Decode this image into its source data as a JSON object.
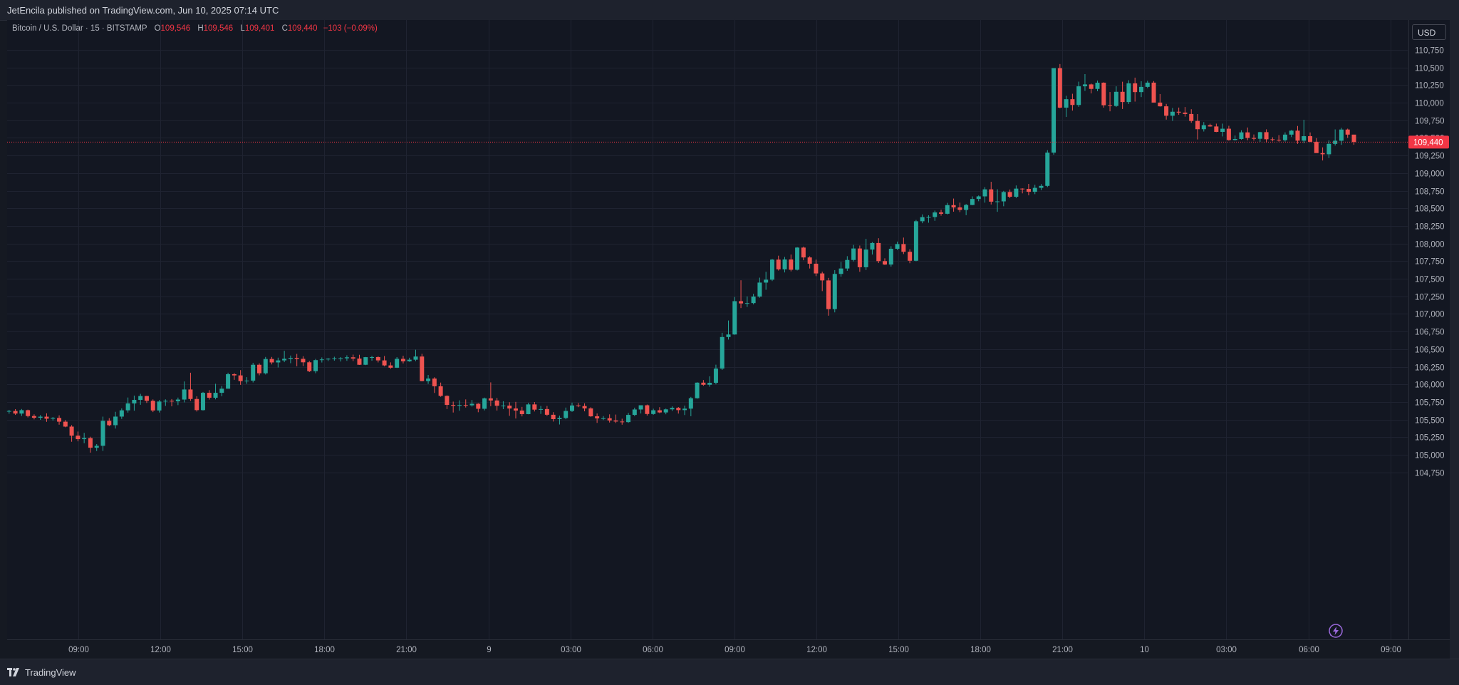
{
  "header": {
    "published_text": "JetEncila published on TradingView.com, Jun 10, 2025 07:14 UTC"
  },
  "legend": {
    "symbol": "Bitcoin / U.S. Dollar · 15 · BITSTAMP",
    "open_label": "O",
    "open": "109,546",
    "high_label": "H",
    "high": "109,546",
    "low_label": "L",
    "low": "109,401",
    "close_label": "C",
    "close": "109,440",
    "change": "−103 (−0.09%)"
  },
  "currency_button": "USD",
  "last_price_label": "109,440",
  "footer": {
    "brand": "TradingView"
  },
  "colors": {
    "up": "#26a69a",
    "down": "#ef5350",
    "background": "#131722",
    "grid": "#1f2331",
    "text": "#b2b5be",
    "last_price": "#f23645"
  },
  "icons": {
    "logo": "tradingview-logo-icon",
    "bolt": "lightning-bolt-icon"
  },
  "chart_data": {
    "type": "candlestick",
    "title": "Bitcoin / U.S. Dollar · 15 · BITSTAMP",
    "interval": "15",
    "exchange": "BITSTAMP",
    "currency": "USD",
    "ylim": [
      104500,
      111000
    ],
    "yticks": [
      104750,
      105000,
      105250,
      105500,
      105750,
      106000,
      106250,
      106500,
      106750,
      107000,
      107250,
      107500,
      107750,
      108000,
      108250,
      108500,
      108750,
      109000,
      109250,
      109500,
      109750,
      110000,
      110250,
      110500,
      110750
    ],
    "ytick_labels": [
      "104,750",
      "105,000",
      "105,250",
      "105,500",
      "105,750",
      "106,000",
      "106,250",
      "106,500",
      "106,750",
      "107,000",
      "107,250",
      "107,500",
      "107,750",
      "108,000",
      "108,250",
      "108,500",
      "108,750",
      "109,000",
      "109,250",
      "109,500",
      "109,750",
      "110,000",
      "110,250",
      "110,500",
      "110,750"
    ],
    "xticks": [
      "09:00",
      "12:00",
      "15:00",
      "18:00",
      "21:00",
      "9",
      "03:00",
      "06:00",
      "09:00",
      "12:00",
      "15:00",
      "18:00",
      "21:00",
      "10",
      "03:00",
      "06:00",
      "09:00"
    ],
    "last_price": 109440,
    "grid": true,
    "candles": [
      [
        105614,
        105638,
        105583,
        105622
      ],
      [
        105622,
        105648,
        105566,
        105585
      ],
      [
        105585,
        105650,
        105551,
        105633
      ],
      [
        105633,
        105641,
        105531,
        105550
      ],
      [
        105550,
        105574,
        105503,
        105526
      ],
      [
        105526,
        105564,
        105496,
        105541
      ],
      [
        105541,
        105588,
        105468,
        105512
      ],
      [
        105512,
        105536,
        105486,
        105523
      ],
      [
        105523,
        105560,
        105427,
        105470
      ],
      [
        105470,
        105493,
        105391,
        105400
      ],
      [
        105400,
        105421,
        105185,
        105271
      ],
      [
        105271,
        105330,
        105191,
        105222
      ],
      [
        105222,
        105311,
        105164,
        105237
      ],
      [
        105237,
        105256,
        105030,
        105100
      ],
      [
        105100,
        105152,
        105053,
        105127
      ],
      [
        105127,
        105541,
        105054,
        105482
      ],
      [
        105482,
        105520,
        105406,
        105420
      ],
      [
        105420,
        105610,
        105372,
        105542
      ],
      [
        105542,
        105658,
        105509,
        105631
      ],
      [
        105631,
        105813,
        105599,
        105729
      ],
      [
        105729,
        105840,
        105626,
        105779
      ],
      [
        105779,
        105865,
        105710,
        105834
      ],
      [
        105834,
        105837,
        105736,
        105766
      ],
      [
        105766,
        105786,
        105606,
        105629
      ],
      [
        105629,
        105778,
        105600,
        105756
      ],
      [
        105756,
        105787,
        105694,
        105766
      ],
      [
        105766,
        105791,
        105688,
        105759
      ],
      [
        105759,
        105812,
        105705,
        105784
      ],
      [
        105784,
        106041,
        105744,
        105927
      ],
      [
        105927,
        106165,
        105766,
        105792
      ],
      [
        105792,
        105831,
        105614,
        105634
      ],
      [
        105634,
        105892,
        105628,
        105880
      ],
      [
        105880,
        105918,
        105784,
        105810
      ],
      [
        105810,
        106008,
        105787,
        105880
      ],
      [
        105880,
        105977,
        105831,
        105938
      ],
      [
        105938,
        106165,
        105939,
        106144
      ],
      [
        106144,
        106160,
        106064,
        106127
      ],
      [
        106127,
        106202,
        105993,
        106046
      ],
      [
        106046,
        106102,
        106008,
        106053
      ],
      [
        106053,
        106306,
        106027,
        106278
      ],
      [
        106278,
        106298,
        106129,
        106157
      ],
      [
        106157,
        106389,
        106140,
        106360
      ],
      [
        106360,
        106389,
        106283,
        106311
      ],
      [
        106311,
        106379,
        106240,
        106340
      ],
      [
        106340,
        106476,
        106315,
        106363
      ],
      [
        106363,
        106409,
        106300,
        106376
      ],
      [
        106376,
        106432,
        106257,
        106362
      ],
      [
        106362,
        106399,
        106260,
        106313
      ],
      [
        106313,
        106331,
        106174,
        106187
      ],
      [
        106187,
        106361,
        106158,
        106344
      ],
      [
        106344,
        106382,
        106310,
        106354
      ],
      [
        106354,
        106372,
        106331,
        106364
      ],
      [
        106364,
        106392,
        106337,
        106369
      ],
      [
        106369,
        106387,
        106324,
        106370
      ],
      [
        106370,
        106412,
        106334,
        106384
      ],
      [
        106384,
        106422,
        106331,
        106366
      ],
      [
        106366,
        106420,
        106276,
        106278
      ],
      [
        106278,
        106389,
        106273,
        106386
      ],
      [
        106386,
        106404,
        106335,
        106387
      ],
      [
        106387,
        106398,
        106311,
        106340
      ],
      [
        106340,
        106402,
        106256,
        106269
      ],
      [
        106269,
        106312,
        106221,
        106236
      ],
      [
        106236,
        106387,
        106232,
        106362
      ],
      [
        106362,
        106406,
        106297,
        106327
      ],
      [
        106327,
        106378,
        106320,
        106350
      ],
      [
        106350,
        106492,
        106330,
        106395
      ],
      [
        106395,
        106433,
        106043,
        106046
      ],
      [
        106046,
        106133,
        106006,
        106082
      ],
      [
        106082,
        106101,
        105878,
        105973
      ],
      [
        105973,
        106025,
        105823,
        105836
      ],
      [
        105836,
        105844,
        105649,
        105708
      ],
      [
        105708,
        105755,
        105600,
        105696
      ],
      [
        105696,
        105773,
        105625,
        105707
      ],
      [
        105707,
        105786,
        105671,
        105702
      ],
      [
        105702,
        105778,
        105684,
        105724
      ],
      [
        105724,
        105732,
        105604,
        105653
      ],
      [
        105653,
        105812,
        105630,
        105801
      ],
      [
        105801,
        106028,
        105689,
        105771
      ],
      [
        105771,
        105807,
        105628,
        105696
      ],
      [
        105696,
        105760,
        105648,
        105698
      ],
      [
        105698,
        105746,
        105553,
        105657
      ],
      [
        105657,
        105751,
        105515,
        105628
      ],
      [
        105628,
        105680,
        105545,
        105577
      ],
      [
        105577,
        105737,
        105575,
        105715
      ],
      [
        105715,
        105749,
        105615,
        105641
      ],
      [
        105641,
        105693,
        105580,
        105649
      ],
      [
        105649,
        105693,
        105552,
        105568
      ],
      [
        105568,
        105605,
        105472,
        105506
      ],
      [
        105506,
        105555,
        105430,
        105522
      ],
      [
        105522,
        105670,
        105505,
        105622
      ],
      [
        105622,
        105740,
        105608,
        105700
      ],
      [
        105700,
        105735,
        105676,
        105692
      ],
      [
        105692,
        105730,
        105617,
        105658
      ],
      [
        105658,
        105675,
        105538,
        105546
      ],
      [
        105546,
        105586,
        105453,
        105517
      ],
      [
        105517,
        105549,
        105493,
        105519
      ],
      [
        105519,
        105574,
        105458,
        105487
      ],
      [
        105487,
        105571,
        105451,
        105472
      ],
      [
        105472,
        105512,
        105427,
        105464
      ],
      [
        105464,
        105595,
        105453,
        105566
      ],
      [
        105566,
        105669,
        105549,
        105643
      ],
      [
        105643,
        105700,
        105586,
        105703
      ],
      [
        105703,
        105713,
        105557,
        105579
      ],
      [
        105579,
        105654,
        105568,
        105632
      ],
      [
        105632,
        105676,
        105590,
        105601
      ],
      [
        105601,
        105656,
        105575,
        105645
      ],
      [
        105645,
        105687,
        105622,
        105666
      ],
      [
        105666,
        105678,
        105585,
        105634
      ],
      [
        105634,
        105698,
        105564,
        105655
      ],
      [
        105655,
        105822,
        105547,
        105803
      ],
      [
        105803,
        106030,
        105796,
        106024
      ],
      [
        106024,
        106061,
        105980,
        105994
      ],
      [
        105994,
        106114,
        105966,
        106022
      ],
      [
        106022,
        106279,
        106000,
        106224
      ],
      [
        106224,
        106732,
        106204,
        106672
      ],
      [
        106672,
        106906,
        106636,
        106708
      ],
      [
        106708,
        107241,
        106704,
        107181
      ],
      [
        107181,
        107478,
        107083,
        107149
      ],
      [
        107149,
        107249,
        107099,
        107154
      ],
      [
        107154,
        107285,
        107135,
        107247
      ],
      [
        107247,
        107515,
        107230,
        107445
      ],
      [
        107445,
        107598,
        107343,
        107486
      ],
      [
        107486,
        107781,
        107467,
        107771
      ],
      [
        107771,
        107827,
        107616,
        107633
      ],
      [
        107633,
        107810,
        107589,
        107773
      ],
      [
        107773,
        107843,
        107604,
        107627
      ],
      [
        107627,
        107949,
        107617,
        107942
      ],
      [
        107942,
        107956,
        107762,
        107802
      ],
      [
        107802,
        107819,
        107645,
        107713
      ],
      [
        107713,
        107771,
        107537,
        107575
      ],
      [
        107575,
        107599,
        107324,
        107476
      ],
      [
        107476,
        107512,
        106975,
        107068
      ],
      [
        107068,
        107622,
        107022,
        107568
      ],
      [
        107568,
        107738,
        107528,
        107645
      ],
      [
        107645,
        107820,
        107612,
        107766
      ],
      [
        107766,
        107980,
        107745,
        107929
      ],
      [
        107929,
        107971,
        107598,
        107663
      ],
      [
        107663,
        108066,
        107623,
        107914
      ],
      [
        107914,
        108021,
        107843,
        108007
      ],
      [
        108007,
        108075,
        107722,
        107750
      ],
      [
        107750,
        107790,
        107695,
        107701
      ],
      [
        107701,
        107961,
        107672,
        107925
      ],
      [
        107925,
        108027,
        107908,
        107992
      ],
      [
        107992,
        108084,
        107850,
        107882
      ],
      [
        107882,
        107919,
        107720,
        107755
      ],
      [
        107755,
        108334,
        107748,
        108316
      ],
      [
        108316,
        108413,
        108288,
        108374
      ],
      [
        108374,
        108401,
        108295,
        108376
      ],
      [
        108376,
        108467,
        108322,
        108441
      ],
      [
        108441,
        108480,
        108395,
        108422
      ],
      [
        108422,
        108577,
        108413,
        108545
      ],
      [
        108545,
        108638,
        108452,
        108512
      ],
      [
        108512,
        108580,
        108445,
        108477
      ],
      [
        108477,
        108561,
        108402,
        108547
      ],
      [
        108547,
        108669,
        108544,
        108632
      ],
      [
        108632,
        108682,
        108600,
        108669
      ],
      [
        108669,
        108801,
        108580,
        108769
      ],
      [
        108769,
        108876,
        108554,
        108594
      ],
      [
        108594,
        108770,
        108450,
        108598
      ],
      [
        108598,
        108747,
        108529,
        108731
      ],
      [
        108731,
        108767,
        108644,
        108664
      ],
      [
        108664,
        108824,
        108645,
        108779
      ],
      [
        108779,
        108784,
        108712,
        108775
      ],
      [
        108775,
        108846,
        108684,
        108734
      ],
      [
        108734,
        108834,
        108701,
        108790
      ],
      [
        108790,
        108843,
        108757,
        108818
      ],
      [
        108818,
        109325,
        108801,
        109290
      ],
      [
        109290,
        110486,
        109261,
        110490
      ],
      [
        110490,
        110548,
        109919,
        109929
      ],
      [
        109929,
        110097,
        109797,
        110049
      ],
      [
        110049,
        110126,
        109887,
        109967
      ],
      [
        109967,
        110298,
        109940,
        110232
      ],
      [
        110232,
        110405,
        110167,
        110259
      ],
      [
        110259,
        110271,
        110131,
        110195
      ],
      [
        110195,
        110313,
        110162,
        110283
      ],
      [
        110283,
        110289,
        109929,
        109963
      ],
      [
        109963,
        110151,
        109877,
        109953
      ],
      [
        109953,
        110232,
        109938,
        110154
      ],
      [
        110154,
        110297,
        109910,
        110009
      ],
      [
        110009,
        110318,
        109981,
        110274
      ],
      [
        110274,
        110355,
        110015,
        110150
      ],
      [
        110150,
        110304,
        110079,
        110224
      ],
      [
        110224,
        110310,
        110205,
        110284
      ],
      [
        110284,
        110306,
        110004,
        110001
      ],
      [
        110001,
        110122,
        109943,
        109948
      ],
      [
        109948,
        109982,
        109759,
        109814
      ],
      [
        109814,
        109924,
        109741,
        109871
      ],
      [
        109871,
        109930,
        109827,
        109859
      ],
      [
        109859,
        109938,
        109801,
        109839
      ],
      [
        109839,
        109907,
        109714,
        109740
      ],
      [
        109740,
        109838,
        109478,
        109623
      ],
      [
        109623,
        109724,
        109590,
        109680
      ],
      [
        109680,
        109701,
        109658,
        109662
      ],
      [
        109662,
        109702,
        109581,
        109585
      ],
      [
        109585,
        109702,
        109520,
        109630
      ],
      [
        109630,
        109671,
        109460,
        109469
      ],
      [
        109469,
        109533,
        109461,
        109484
      ],
      [
        109484,
        109607,
        109474,
        109578
      ],
      [
        109578,
        109647,
        109465,
        109499
      ],
      [
        109499,
        109548,
        109461,
        109487
      ],
      [
        109487,
        109586,
        109443,
        109581
      ],
      [
        109581,
        109621,
        109432,
        109480
      ],
      [
        109480,
        109508,
        109451,
        109472
      ],
      [
        109472,
        109539,
        109447,
        109467
      ],
      [
        109467,
        109578,
        109448,
        109546
      ],
      [
        109546,
        109612,
        109512,
        109602
      ],
      [
        109602,
        109669,
        109415,
        109460
      ],
      [
        109460,
        109757,
        109424,
        109524
      ],
      [
        109524,
        109577,
        109439,
        109444
      ],
      [
        109444,
        109496,
        109290,
        109284
      ],
      [
        109284,
        109365,
        109179,
        109267
      ],
      [
        109267,
        109465,
        109213,
        109415
      ],
      [
        109415,
        109620,
        109391,
        109459
      ],
      [
        109459,
        109642,
        109401,
        109618
      ],
      [
        109618,
        109631,
        109499,
        109546
      ],
      [
        109546,
        109546,
        109401,
        109440
      ]
    ]
  }
}
